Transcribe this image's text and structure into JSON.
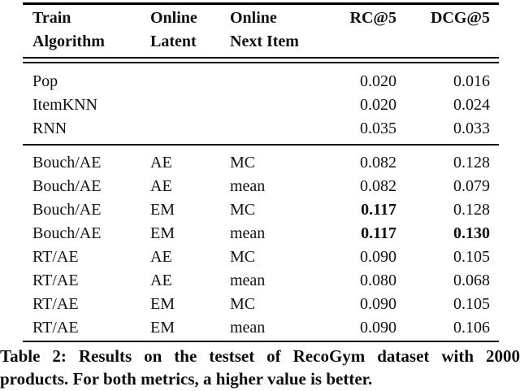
{
  "colors": {
    "text": "#111111",
    "rule": "#000000",
    "background": "#ffffff"
  },
  "table": {
    "columns": [
      {
        "line1": "Train",
        "line2": "Algorithm"
      },
      {
        "line1": "Online",
        "line2": "Latent"
      },
      {
        "line1": "Online",
        "line2": "Next Item"
      },
      {
        "line1": "RC@5",
        "line2": ""
      },
      {
        "line1": "DCG@5",
        "line2": ""
      }
    ],
    "baseline_rows": [
      {
        "train": "Pop",
        "latent": "",
        "next_item": "",
        "rc5": "0.020",
        "dcg5": "0.016",
        "rc5_bold": false,
        "dcg5_bold": false
      },
      {
        "train": "ItemKNN",
        "latent": "",
        "next_item": "",
        "rc5": "0.020",
        "dcg5": "0.024",
        "rc5_bold": false,
        "dcg5_bold": false
      },
      {
        "train": "RNN",
        "latent": "",
        "next_item": "",
        "rc5": "0.035",
        "dcg5": "0.033",
        "rc5_bold": false,
        "dcg5_bold": false
      }
    ],
    "model_rows": [
      {
        "train": "Bouch/AE",
        "latent": "AE",
        "next_item": "MC",
        "rc5": "0.082",
        "dcg5": "0.128",
        "rc5_bold": false,
        "dcg5_bold": false
      },
      {
        "train": "Bouch/AE",
        "latent": "AE",
        "next_item": "mean",
        "rc5": "0.082",
        "dcg5": "0.079",
        "rc5_bold": false,
        "dcg5_bold": false
      },
      {
        "train": "Bouch/AE",
        "latent": "EM",
        "next_item": "MC",
        "rc5": "0.117",
        "dcg5": "0.128",
        "rc5_bold": true,
        "dcg5_bold": false
      },
      {
        "train": "Bouch/AE",
        "latent": "EM",
        "next_item": "mean",
        "rc5": "0.117",
        "dcg5": "0.130",
        "rc5_bold": true,
        "dcg5_bold": true
      },
      {
        "train": "RT/AE",
        "latent": "AE",
        "next_item": "MC",
        "rc5": "0.090",
        "dcg5": "0.105",
        "rc5_bold": false,
        "dcg5_bold": false
      },
      {
        "train": "RT/AE",
        "latent": "AE",
        "next_item": "mean",
        "rc5": "0.080",
        "dcg5": "0.068",
        "rc5_bold": false,
        "dcg5_bold": false
      },
      {
        "train": "RT/AE",
        "latent": "EM",
        "next_item": "MC",
        "rc5": "0.090",
        "dcg5": "0.105",
        "rc5_bold": false,
        "dcg5_bold": false
      },
      {
        "train": "RT/AE",
        "latent": "EM",
        "next_item": "mean",
        "rc5": "0.090",
        "dcg5": "0.106",
        "rc5_bold": false,
        "dcg5_bold": false
      }
    ]
  },
  "caption": {
    "line1": "Table 2: Results on the testset of RecoGym dataset with 2000",
    "line2": "products. For both metrics, a higher value is better."
  }
}
